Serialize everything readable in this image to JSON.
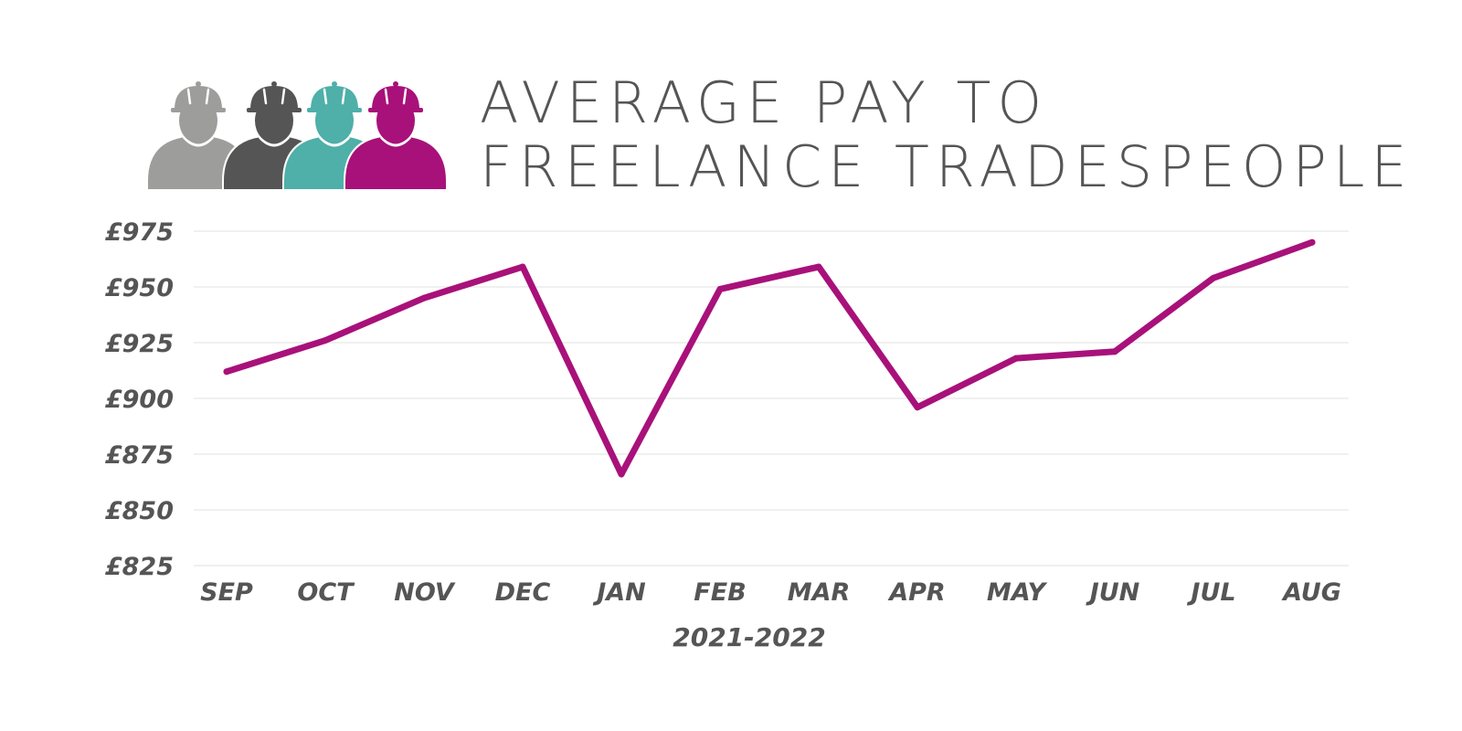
{
  "header": {
    "title_line1": "AVERAGE PAY TO",
    "title_line2": "FREELANCE TRADESPEOPLE",
    "icon": "construction-workers-icon",
    "worker_colors": [
      "#9d9d9b",
      "#555555",
      "#4fafa9",
      "#a8117a"
    ]
  },
  "chart_data": {
    "type": "line",
    "title": "AVERAGE PAY TO FREELANCE TRADESPEOPLE",
    "xlabel": "2021-2022",
    "ylabel": "",
    "categories": [
      "SEP",
      "OCT",
      "NOV",
      "DEC",
      "JAN",
      "FEB",
      "MAR",
      "APR",
      "MAY",
      "JUN",
      "JUL",
      "AUG"
    ],
    "series": [
      {
        "values": [
          912,
          926,
          945,
          959,
          866,
          949,
          959,
          896,
          918,
          921,
          954,
          970
        ],
        "color": "#a8117a"
      }
    ],
    "ylim": [
      825,
      975
    ],
    "y_ticks": [
      975,
      950,
      925,
      900,
      875,
      850,
      825
    ],
    "y_tick_labels": [
      "£975",
      "£950",
      "£925",
      "£900",
      "£875",
      "£850",
      "£825"
    ],
    "grid": true,
    "grid_color": "#e2e2e2",
    "text_color": "#555555",
    "legend": "none"
  }
}
